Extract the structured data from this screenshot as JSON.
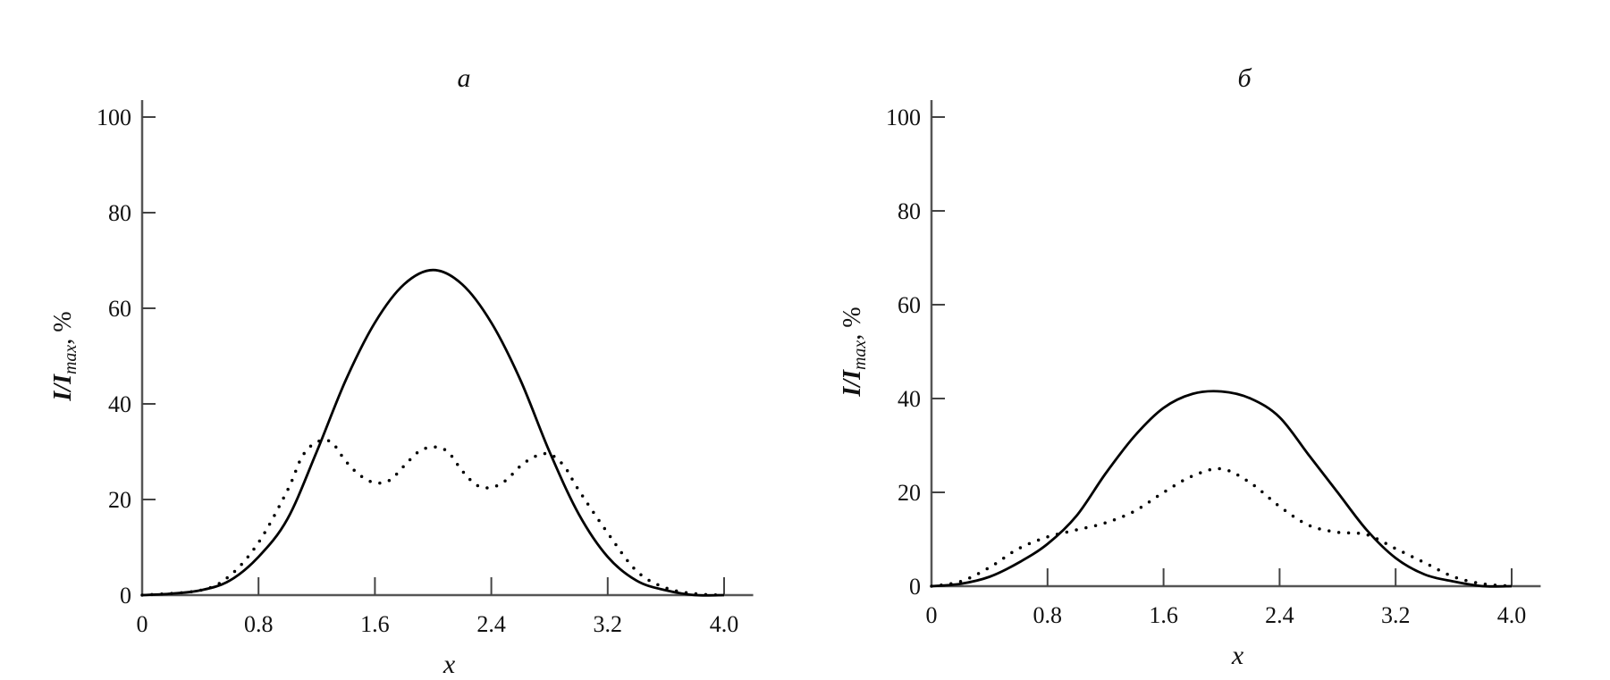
{
  "chart_data": [
    {
      "type": "line",
      "title": "a",
      "xlabel": "x",
      "ylabel": "I/I_max, %",
      "ylabel_parts": {
        "main": "I/I",
        "sub": "max",
        "tail": ", %"
      },
      "xlim": [
        0,
        4.2
      ],
      "ylim": [
        0,
        100
      ],
      "xticks": [
        "0",
        "0.8",
        "1.6",
        "2.4",
        "3.2",
        "4.0"
      ],
      "yticks": [
        "0",
        "20",
        "40",
        "60",
        "80",
        "100"
      ],
      "grid": false,
      "series": [
        {
          "style": "solid",
          "x": [
            0,
            0.2,
            0.4,
            0.6,
            0.8,
            1.0,
            1.2,
            1.4,
            1.6,
            1.8,
            2.0,
            2.2,
            2.4,
            2.6,
            2.8,
            3.0,
            3.2,
            3.4,
            3.6,
            3.8,
            4.0
          ],
          "y": [
            0,
            0.3,
            1,
            3,
            8,
            16,
            30,
            45,
            57,
            65,
            68,
            65,
            57,
            45,
            30,
            17,
            8,
            3,
            1,
            0,
            0
          ]
        },
        {
          "style": "dotted",
          "x": [
            0,
            0.4,
            0.6,
            0.8,
            1.0,
            1.1,
            1.2,
            1.3,
            1.4,
            1.5,
            1.6,
            1.7,
            1.8,
            1.9,
            2.0,
            2.1,
            2.2,
            2.3,
            2.4,
            2.5,
            2.6,
            2.7,
            2.8,
            2.9,
            3.0,
            3.2,
            3.4,
            3.6,
            3.8,
            4.0
          ],
          "y": [
            0,
            1,
            4,
            11,
            22,
            29,
            32,
            32,
            28,
            25,
            23.5,
            24,
            27,
            30,
            31,
            30,
            26,
            23,
            22.5,
            24,
            27,
            29,
            29.5,
            27,
            22,
            13,
            5,
            1.5,
            0.3,
            0
          ]
        }
      ]
    },
    {
      "type": "line",
      "title": "б",
      "xlabel": "x",
      "ylabel": "I/I_max, %",
      "ylabel_parts": {
        "main": "I/I",
        "sub": "max",
        "tail": ", %"
      },
      "xlim": [
        0,
        4.2
      ],
      "ylim": [
        0,
        100
      ],
      "xticks": [
        "0",
        "0.8",
        "1.6",
        "2.4",
        "3.2",
        "4.0"
      ],
      "yticks": [
        "0",
        "20",
        "40",
        "60",
        "80",
        "100"
      ],
      "grid": false,
      "series": [
        {
          "style": "solid",
          "x": [
            0,
            0.2,
            0.4,
            0.6,
            0.8,
            1.0,
            1.2,
            1.4,
            1.6,
            1.8,
            2.0,
            2.2,
            2.4,
            2.6,
            2.8,
            3.0,
            3.2,
            3.4,
            3.6,
            3.8,
            4.0
          ],
          "y": [
            0,
            0.5,
            2,
            5,
            9,
            15,
            24,
            32,
            38,
            41,
            41.5,
            40,
            36,
            28,
            20,
            12,
            6,
            2.5,
            1,
            0,
            0
          ]
        },
        {
          "style": "dotted",
          "x": [
            0,
            0.2,
            0.4,
            0.6,
            0.8,
            1.0,
            1.2,
            1.4,
            1.6,
            1.8,
            2.0,
            2.2,
            2.4,
            2.6,
            2.8,
            3.0,
            3.2,
            3.4,
            3.6,
            3.8,
            4.0
          ],
          "y": [
            0,
            1,
            4,
            8,
            10.5,
            12,
            13.5,
            16,
            20,
            23.5,
            25,
            22,
            17,
            13,
            11.5,
            11,
            8,
            5,
            2,
            0.5,
            0
          ]
        }
      ]
    }
  ]
}
